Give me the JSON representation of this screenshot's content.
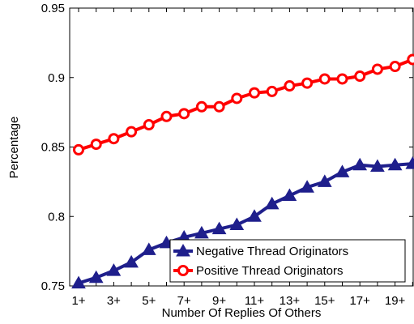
{
  "chart_data": {
    "type": "line",
    "title": "",
    "xlabel": "Number Of Replies Of Others",
    "ylabel": "Percentage",
    "categories": [
      "1+",
      "2+",
      "3+",
      "4+",
      "5+",
      "6+",
      "7+",
      "8+",
      "9+",
      "10+",
      "11+",
      "12+",
      "13+",
      "14+",
      "15+",
      "16+",
      "17+",
      "18+",
      "19+",
      "20+"
    ],
    "x_tick_labels": [
      "1+",
      "3+",
      "5+",
      "7+",
      "9+",
      "11+",
      "13+",
      "15+",
      "17+",
      "19+"
    ],
    "y_ticks": [
      "0.75",
      "0.8",
      "0.85",
      "0.9",
      "0.95"
    ],
    "ylim": [
      0.75,
      0.95
    ],
    "grid": false,
    "legend_position": "bottom-right",
    "series": [
      {
        "name": "Negative Thread Originators",
        "color": "#1f1f8c",
        "marker": "triangle",
        "values": [
          0.752,
          0.756,
          0.761,
          0.767,
          0.776,
          0.781,
          0.785,
          0.788,
          0.791,
          0.794,
          0.8,
          0.809,
          0.815,
          0.821,
          0.825,
          0.832,
          0.837,
          0.836,
          0.837,
          0.838
        ]
      },
      {
        "name": "Positive Thread Originators",
        "color": "#ff0000",
        "marker": "circle",
        "values": [
          0.848,
          0.852,
          0.856,
          0.861,
          0.866,
          0.872,
          0.874,
          0.879,
          0.879,
          0.885,
          0.889,
          0.89,
          0.894,
          0.896,
          0.899,
          0.899,
          0.901,
          0.906,
          0.908,
          0.913
        ]
      }
    ]
  }
}
